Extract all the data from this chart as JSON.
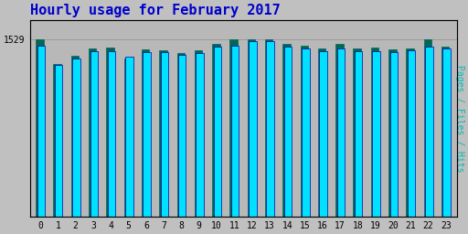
{
  "title": "Hourly usage for February 2017",
  "title_color": "#0000cc",
  "title_fontsize": 11,
  "xlabel_values": [
    0,
    1,
    2,
    3,
    4,
    5,
    6,
    7,
    8,
    9,
    10,
    11,
    12,
    13,
    14,
    15,
    16,
    17,
    18,
    19,
    20,
    21,
    22,
    23
  ],
  "ytick_value": 1529,
  "ylabel_right": "Pages / Files / Hits",
  "background_color": "#c0c0c0",
  "plot_bg_color": "#b8b8b8",
  "bar_color_cyan": "#00e0ff",
  "bar_color_teal": "#006655",
  "bar_edge_color": "#0000aa",
  "hits": [
    1480,
    1310,
    1370,
    1430,
    1430,
    1380,
    1420,
    1420,
    1395,
    1415,
    1470,
    1475,
    1520,
    1520,
    1470,
    1455,
    1430,
    1450,
    1430,
    1430,
    1420,
    1435,
    1470,
    1450
  ],
  "pages": [
    1529,
    1320,
    1390,
    1455,
    1460,
    1370,
    1445,
    1440,
    1415,
    1435,
    1490,
    1529,
    1529,
    1529,
    1490,
    1475,
    1450,
    1490,
    1450,
    1460,
    1445,
    1455,
    1529,
    1470
  ],
  "ymax": 1700,
  "ymin": 0,
  "font_family": "monospace"
}
